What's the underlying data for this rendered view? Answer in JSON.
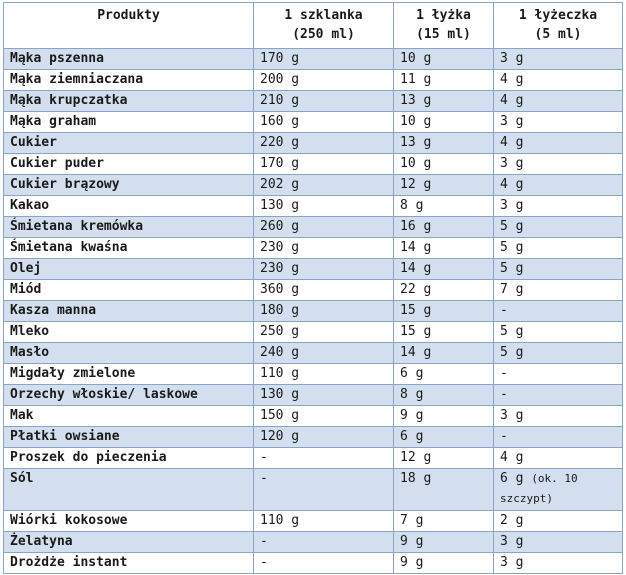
{
  "table": {
    "header": [
      [
        "Produkty"
      ],
      [
        "1 szklanka",
        "(250 ml)"
      ],
      [
        "1 łyżka",
        "(15 ml)"
      ],
      [
        "1 łyżeczka",
        "(5 ml)"
      ]
    ],
    "rows": [
      [
        "Mąka pszenna",
        "170 g",
        "10 g",
        "3 g"
      ],
      [
        "Mąka ziemniaczana",
        "200 g",
        "11 g",
        "4 g"
      ],
      [
        "Mąka krupczatka",
        "210 g",
        "13 g",
        "4 g"
      ],
      [
        "Mąka graham",
        "160 g",
        "10 g",
        "3 g"
      ],
      [
        "Cukier",
        "220 g",
        "13 g",
        "4 g"
      ],
      [
        "Cukier puder",
        "170 g",
        "10 g",
        "3 g"
      ],
      [
        "Cukier brązowy",
        "202 g",
        "12 g",
        "4 g"
      ],
      [
        "Kakao",
        "130 g",
        "8 g",
        "3 g"
      ],
      [
        "Śmietana kremówka",
        "260 g",
        "16 g",
        "5 g"
      ],
      [
        "Śmietana kwaśna",
        "230 g",
        "14 g",
        "5 g"
      ],
      [
        "Olej",
        "230 g",
        "14 g",
        "5 g"
      ],
      [
        "Miód",
        "360 g",
        "22 g",
        "7 g"
      ],
      [
        "Kasza manna",
        "180 g",
        "15 g",
        "-"
      ],
      [
        "Mleko",
        "250 g",
        "15 g",
        "5 g"
      ],
      [
        "Masło",
        "240 g",
        "14 g",
        "5 g"
      ],
      [
        "Migdały zmielone",
        "110 g",
        "6 g",
        "-"
      ],
      [
        "Orzechy włoskie/ laskowe",
        "130 g",
        "8 g",
        "-"
      ],
      [
        "Mak",
        "150 g",
        "9 g",
        "3 g"
      ],
      [
        "Płatki owsiane",
        "120 g",
        "6 g",
        "-"
      ],
      [
        "Proszek do pieczenia",
        "-",
        "12 g",
        "4 g"
      ],
      [
        "Sól",
        "-",
        "18 g",
        {
          "text": "6 g",
          "note": "(ok. 10 szczypt)"
        }
      ],
      [
        "Wiórki kokosowe",
        "110 g",
        "7 g",
        "2 g"
      ],
      [
        "Żelatyna",
        "-",
        "9 g",
        "3 g"
      ],
      [
        "Drożdże instant",
        "-",
        "9 g",
        "3 g"
      ]
    ]
  }
}
